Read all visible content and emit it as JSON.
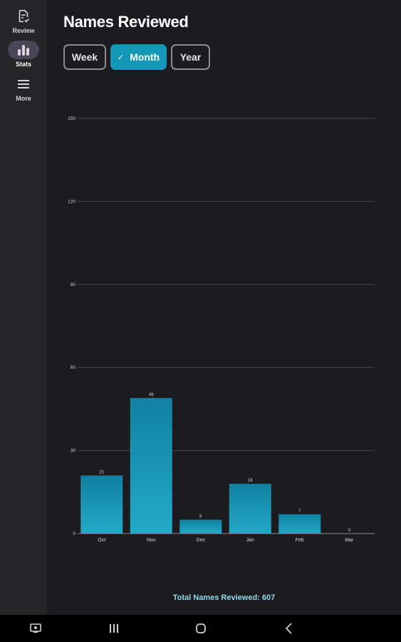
{
  "nav": {
    "items": [
      {
        "label": "Review",
        "icon": "review-doc-icon",
        "active": false
      },
      {
        "label": "Stats",
        "icon": "bar-chart-icon",
        "active": true
      },
      {
        "label": "More",
        "icon": "menu-icon",
        "active": false
      }
    ]
  },
  "page": {
    "title": "Names Reviewed",
    "segments": [
      {
        "label": "Week",
        "selected": false
      },
      {
        "label": "Month",
        "selected": true
      },
      {
        "label": "Year",
        "selected": false
      }
    ],
    "check_glyph": "✓",
    "total_text": "Total Names Reviewed: 607"
  },
  "colors": {
    "background": "#1c1b1f",
    "rail": "#262528",
    "accent": "#1399b7",
    "bar_top": "#1180a0",
    "bar_bottom": "#23aac7",
    "total_text": "#8fdbe9"
  },
  "chart_data": {
    "type": "bar",
    "categories": [
      "Oct",
      "Nov",
      "Dec",
      "Jan",
      "Feb",
      "Mar"
    ],
    "values": [
      21,
      49,
      5,
      18,
      7,
      0
    ],
    "yticks": [
      0,
      30,
      60,
      90,
      120,
      150
    ],
    "ylim": [
      0,
      150
    ],
    "grid": true,
    "title": "",
    "xlabel": "",
    "ylabel": ""
  },
  "system_nav": [
    "screenshot-icon",
    "recents-icon",
    "home-icon",
    "back-icon"
  ]
}
